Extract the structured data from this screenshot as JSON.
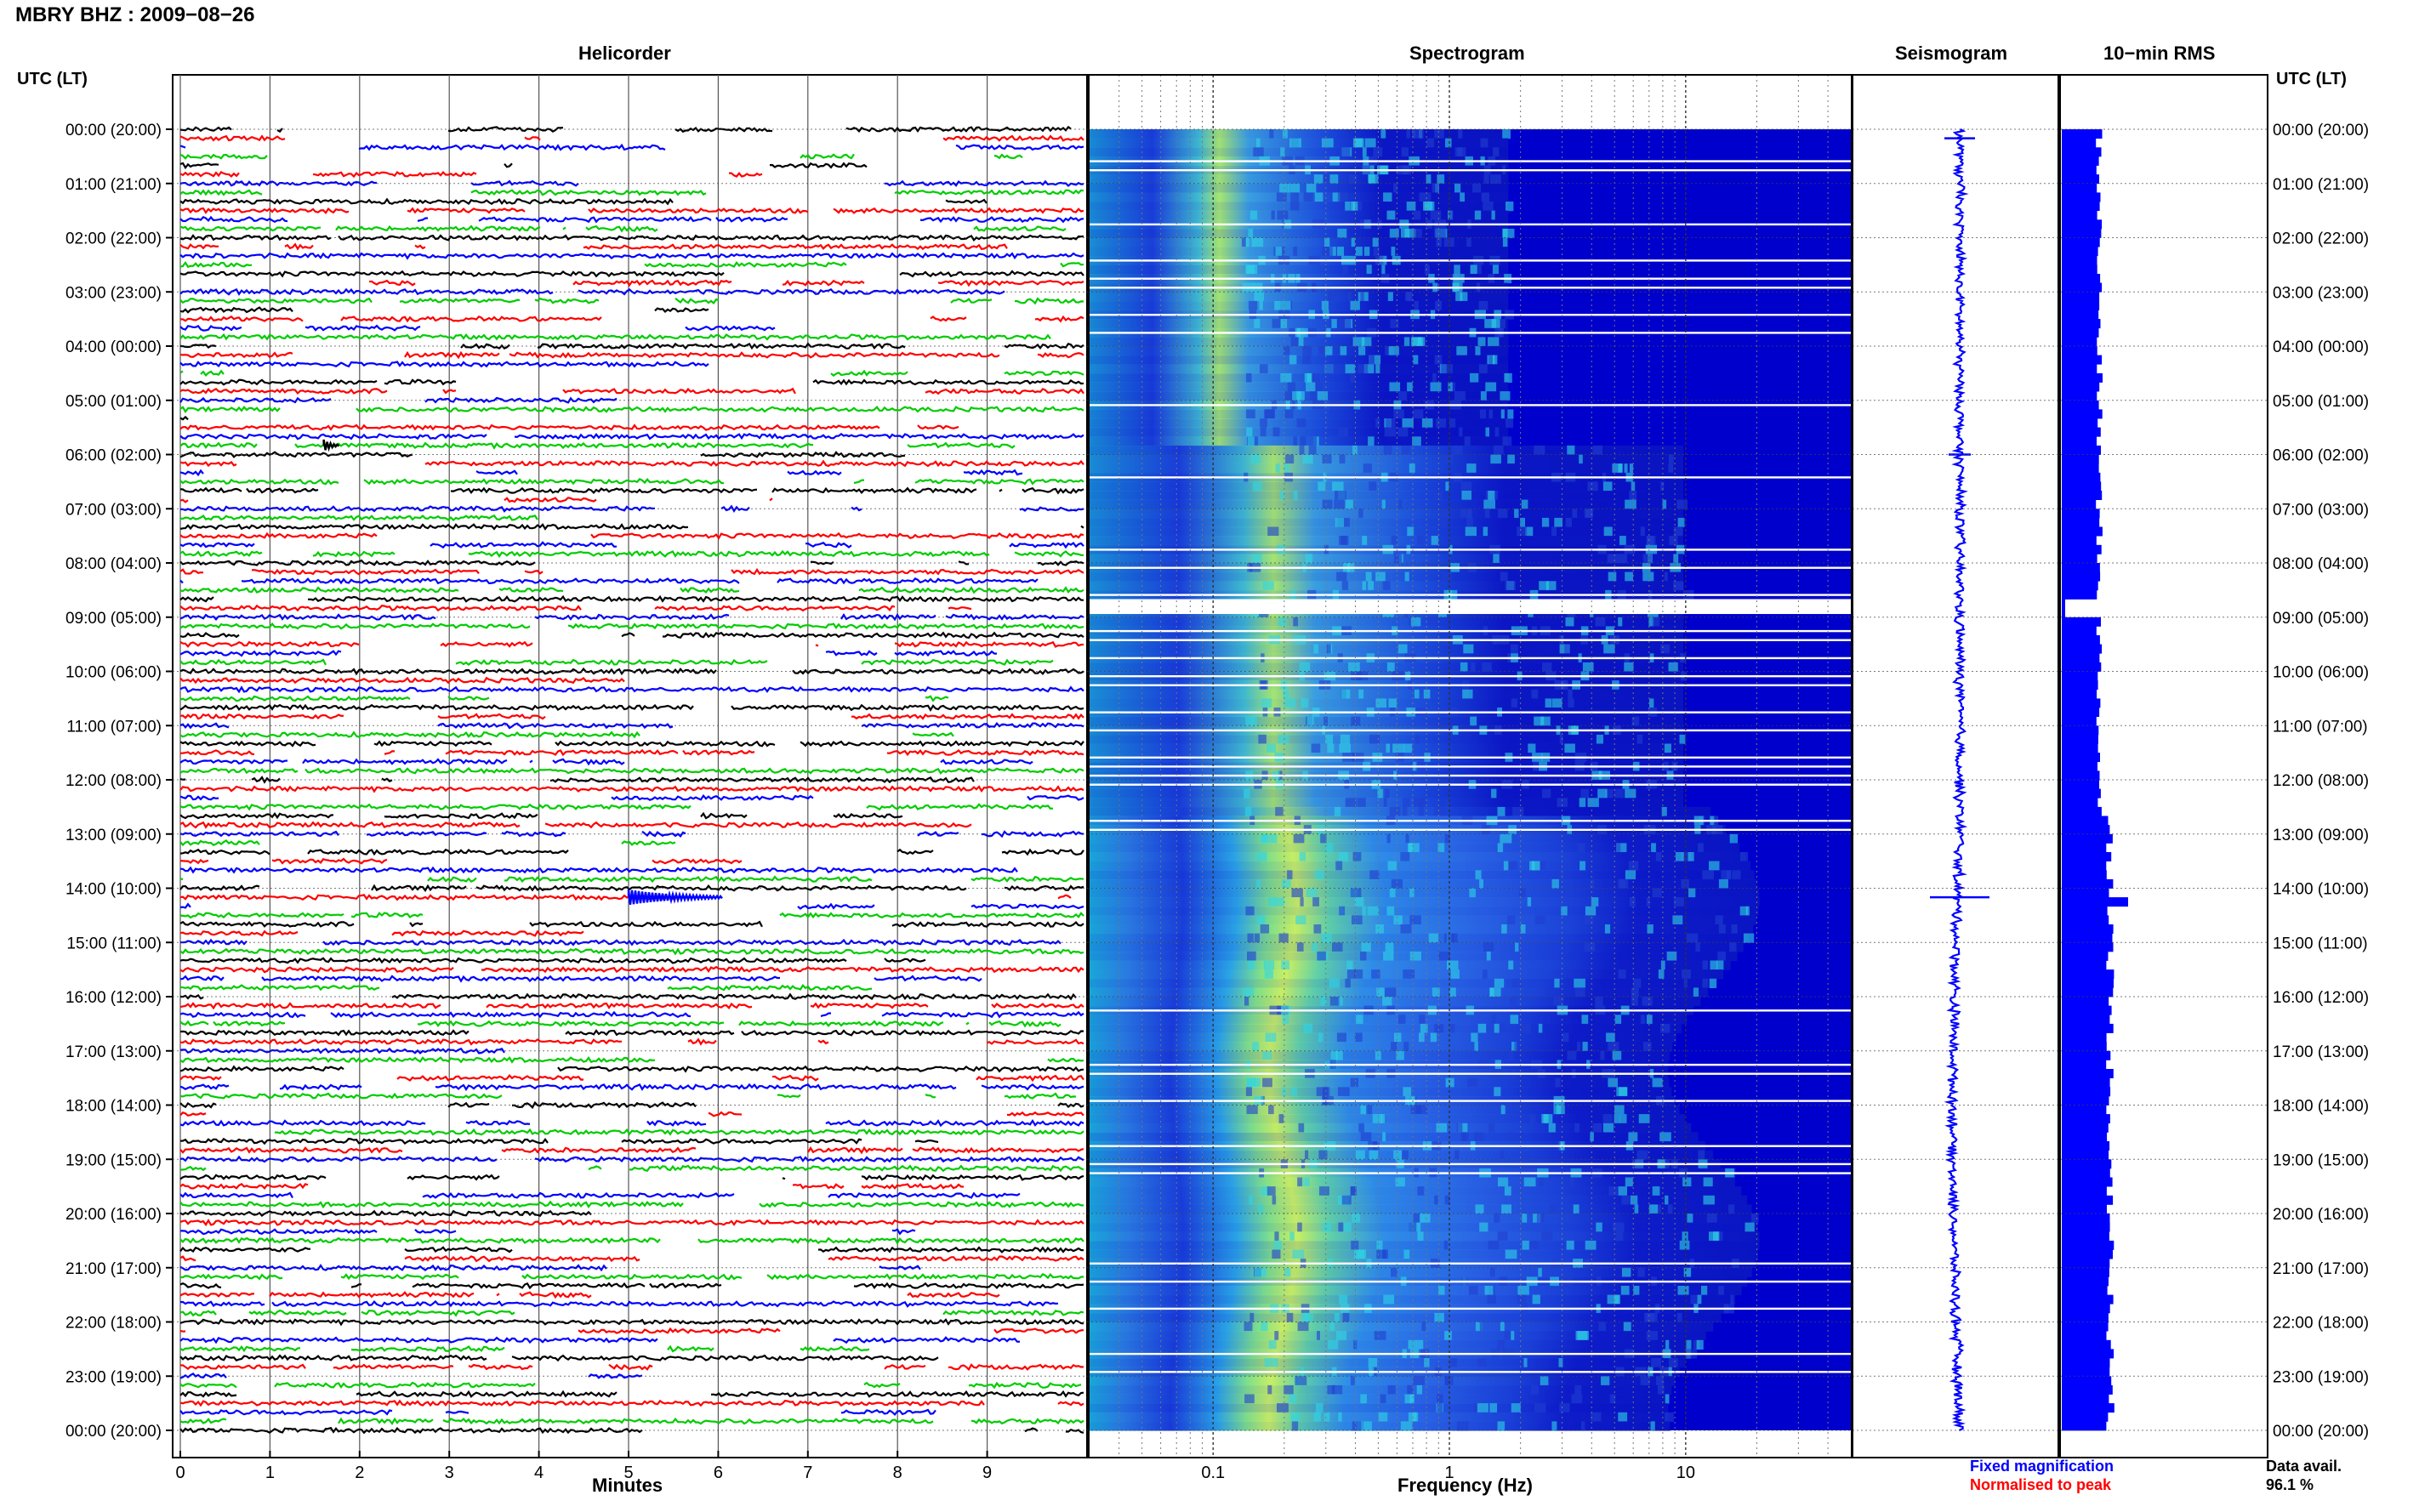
{
  "header": {
    "title": "MBRY BHZ : 2009−08−26"
  },
  "panels": {
    "helicorder": "Helicorder",
    "spectrogram": "Spectrogram",
    "seismogram": "Seismogram",
    "rms": "10−min RMS"
  },
  "axes": {
    "left_title": "UTC (LT)",
    "right_title": "UTC (LT)",
    "minutes_label": "Minutes",
    "frequency_label": "Frequency (Hz)",
    "minute_ticks": [
      "0",
      "1",
      "2",
      "3",
      "4",
      "5",
      "6",
      "7",
      "8",
      "9"
    ],
    "frequency_ticks": [
      "0.1",
      "1",
      "10"
    ],
    "time_labels": [
      "00:00 (20:00)",
      "01:00 (21:00)",
      "02:00 (22:00)",
      "03:00 (23:00)",
      "04:00 (00:00)",
      "05:00 (01:00)",
      "06:00 (02:00)",
      "07:00 (03:00)",
      "08:00 (04:00)",
      "09:00 (05:00)",
      "10:00 (06:00)",
      "11:00 (07:00)",
      "12:00 (08:00)",
      "13:00 (09:00)",
      "14:00 (10:00)",
      "15:00 (11:00)",
      "16:00 (12:00)",
      "17:00 (13:00)",
      "18:00 (14:00)",
      "19:00 (15:00)",
      "20:00 (16:00)",
      "21:00 (17:00)",
      "22:00 (18:00)",
      "23:00 (19:00)",
      "00:00 (20:00)"
    ]
  },
  "legend": {
    "fixed": "Fixed magnification",
    "normalised": "Normalised to peak",
    "fixed_color": "#0000ff",
    "normalised_color": "#ff0000"
  },
  "availability": {
    "label": "Data avail.",
    "value": "96.1 %"
  },
  "colors": {
    "trace_cycle": [
      "#000000",
      "#ff0000",
      "#0000ff",
      "#00cc00"
    ],
    "spectrogram_base": "#0000cc",
    "rms_bar": "#0000ff"
  },
  "chart_data": {
    "type": "heatmap",
    "minutes_range": [
      0,
      10
    ],
    "frequency_range_hz": [
      0.03,
      50
    ],
    "frequency_scale": "log",
    "traces_per_hour": 6,
    "hours": 24,
    "events": [
      {
        "time_utc": "05:50",
        "minute": 1.6,
        "note": "small transient"
      },
      {
        "time_utc": "14:10",
        "minute": 5.0,
        "note": "largest event of day"
      }
    ],
    "data_gaps_utc": [
      "08:40",
      "09:00"
    ],
    "rms_peak_utc": "14:10"
  }
}
